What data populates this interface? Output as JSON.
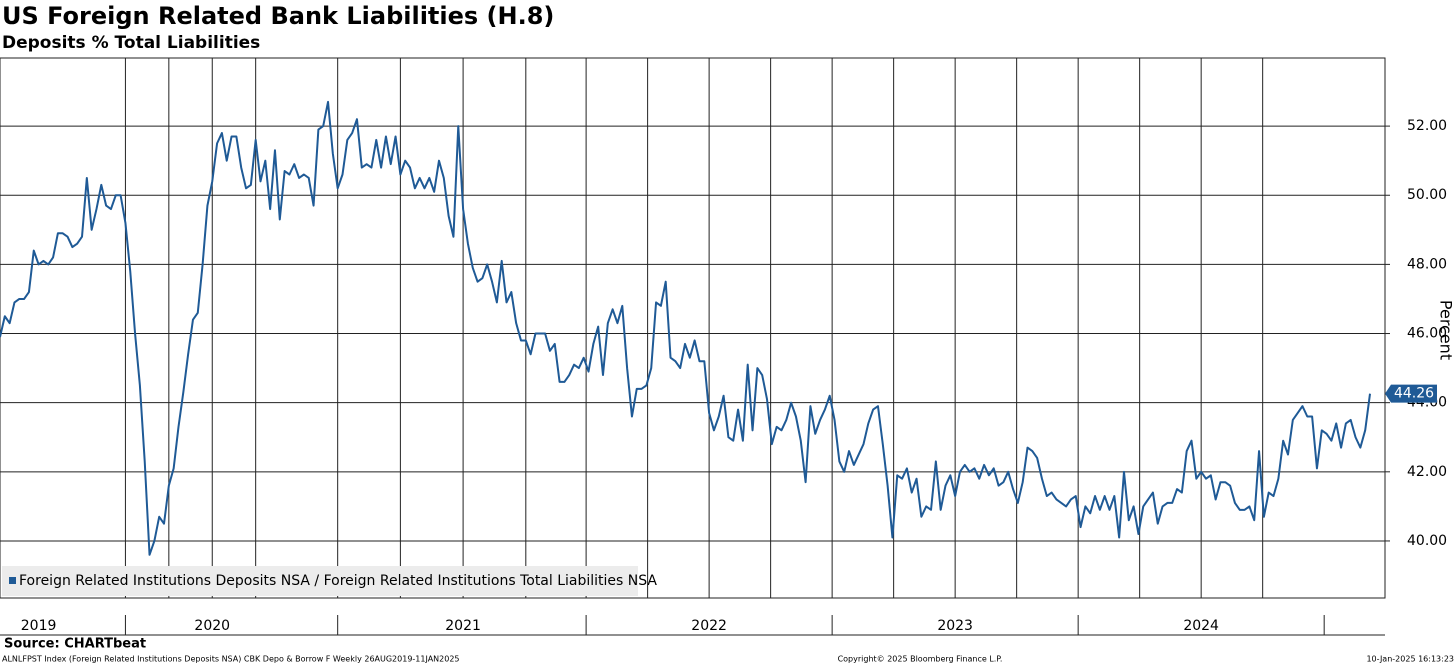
{
  "chart_data": {
    "type": "line",
    "title": "US Foreign Related Bank Liabilities (H.8)",
    "subtitle": "Deposits % Total Liabilities",
    "y_label": "Percent",
    "source": "Source: CHARTbeat",
    "footer_left": "ALNLFPST Index (Foreign Related Institutions Deposits NSA) CBK Depo & Borrow F  Weekly 26AUG2019-11JAN2025",
    "footer_center": "Copyright© 2025 Bloomberg Finance L.P.",
    "footer_right": "10-Jan-2025 16:13:23",
    "grid": true,
    "legend": "lower left",
    "ylim": [
      38.35,
      53.97
    ],
    "yticks": [
      {
        "value": 40,
        "label": "40.00"
      },
      {
        "value": 42,
        "label": "42.00"
      },
      {
        "value": 44,
        "label": "44.00"
      },
      {
        "value": 46,
        "label": "46.00"
      },
      {
        "value": 48,
        "label": "48.00"
      },
      {
        "value": 50,
        "label": "50.00"
      },
      {
        "value": 52,
        "label": "52.00"
      }
    ],
    "categories": [
      null,
      null,
      null,
      null,
      null,
      null,
      null,
      null,
      "2019",
      null,
      null,
      null,
      null,
      null,
      null,
      null,
      null,
      null,
      null,
      null,
      null,
      null,
      null,
      null,
      null,
      null,
      null,
      null,
      null,
      null,
      null,
      null,
      null,
      null,
      null,
      null,
      null,
      null,
      null,
      null,
      null,
      null,
      null,
      null,
      "2020",
      null,
      null,
      null,
      null,
      null,
      null,
      null,
      null,
      null,
      null,
      null,
      null,
      null,
      null,
      null,
      null,
      null,
      null,
      null,
      null,
      null,
      null,
      null,
      null,
      null,
      null,
      null,
      null,
      null,
      null,
      null,
      null,
      null,
      null,
      null,
      null,
      null,
      null,
      null,
      null,
      null,
      null,
      null,
      null,
      null,
      null,
      null,
      null,
      null,
      null,
      null,
      "2021",
      null,
      null,
      null,
      null,
      null,
      null,
      null,
      null,
      null,
      null,
      null,
      null,
      null,
      null,
      null,
      null,
      null,
      null,
      null,
      null,
      null,
      null,
      null,
      null,
      null,
      null,
      null,
      null,
      null,
      null,
      null,
      null,
      null,
      null,
      null,
      null,
      null,
      null,
      null,
      null,
      null,
      null,
      null,
      null,
      null,
      null,
      null,
      null,
      null,
      null,
      "2022",
      null,
      null,
      null,
      null,
      null,
      null,
      null,
      null,
      null,
      null,
      null,
      null,
      null,
      null,
      null,
      null,
      null,
      null,
      null,
      null,
      null,
      null,
      null,
      null,
      null,
      null,
      null,
      null,
      null,
      null,
      null,
      null,
      null,
      null,
      null,
      null,
      null,
      null,
      null,
      null,
      null,
      null,
      null,
      null,
      null,
      null,
      null,
      null,
      null,
      null,
      "2023",
      null,
      null,
      null,
      null,
      null,
      null,
      null,
      null,
      null,
      null,
      null,
      null,
      null,
      null,
      null,
      null,
      null,
      null,
      null,
      null,
      null,
      null,
      null,
      null,
      null,
      null,
      null,
      null,
      null,
      null,
      null,
      null,
      null,
      null,
      null,
      null,
      null,
      null,
      null,
      null,
      null,
      null,
      null,
      null,
      null,
      null,
      null,
      null,
      null,
      null,
      "2024",
      null,
      null,
      null,
      null,
      null,
      null,
      null,
      null,
      null,
      null,
      null,
      null,
      null,
      null,
      null,
      null,
      null,
      null,
      null,
      null,
      null,
      null,
      null,
      null,
      null,
      null,
      null,
      null,
      null,
      null,
      null,
      null,
      null,
      null,
      null
    ],
    "series": [
      {
        "name": "Foreign Related Institutions Deposits NSA / Foreign Related Institutions Total Liabilities NSA",
        "color": "#1f5a96",
        "values": [
          45.9,
          46.5,
          46.3,
          46.9,
          47.0,
          47.0,
          47.2,
          48.4,
          48.0,
          48.1,
          48.0,
          48.2,
          48.9,
          48.9,
          48.8,
          48.5,
          48.6,
          48.8,
          50.5,
          49.0,
          49.6,
          50.3,
          49.7,
          49.6,
          50.0,
          50.0,
          49.2,
          47.8,
          46.0,
          44.5,
          42.3,
          39.6,
          40.0,
          40.7,
          40.5,
          41.6,
          42.1,
          43.3,
          44.3,
          45.4,
          46.4,
          46.6,
          48.0,
          49.7,
          50.4,
          51.5,
          51.8,
          51.0,
          51.7,
          51.7,
          50.8,
          50.2,
          50.3,
          51.6,
          50.4,
          51.0,
          49.6,
          51.3,
          49.3,
          50.7,
          50.6,
          50.9,
          50.5,
          50.6,
          50.5,
          49.7,
          51.9,
          52.0,
          52.7,
          51.2,
          50.2,
          50.6,
          51.6,
          51.8,
          52.2,
          50.8,
          50.9,
          50.8,
          51.6,
          50.8,
          51.7,
          50.9,
          51.7,
          50.6,
          51.0,
          50.8,
          50.2,
          50.5,
          50.2,
          50.5,
          50.1,
          51.0,
          50.5,
          49.4,
          48.8,
          52.0,
          49.6,
          48.6,
          47.9,
          47.5,
          47.6,
          48.0,
          47.5,
          46.9,
          48.1,
          46.9,
          47.2,
          46.3,
          45.8,
          45.8,
          45.4,
          46.0,
          46.0,
          46.0,
          45.5,
          45.7,
          44.6,
          44.6,
          44.8,
          45.1,
          45.0,
          45.3,
          44.9,
          45.7,
          46.2,
          44.8,
          46.3,
          46.7,
          46.3,
          46.8,
          45.0,
          43.6,
          44.4,
          44.4,
          44.5,
          45.0,
          46.9,
          46.8,
          47.5,
          45.3,
          45.2,
          45.0,
          45.7,
          45.3,
          45.8,
          45.2,
          45.2,
          43.7,
          43.2,
          43.6,
          44.2,
          43.0,
          42.9,
          43.8,
          42.9,
          45.1,
          43.2,
          45.0,
          44.8,
          44.1,
          42.8,
          43.3,
          43.2,
          43.5,
          44.0,
          43.6,
          42.9,
          41.7,
          43.9,
          43.1,
          43.5,
          43.8,
          44.2,
          43.5,
          42.3,
          42.0,
          42.6,
          42.2,
          42.5,
          42.8,
          43.4,
          43.8,
          43.9,
          42.8,
          41.6,
          40.1,
          41.9,
          41.8,
          42.1,
          41.4,
          41.8,
          40.7,
          41.0,
          40.9,
          42.3,
          40.9,
          41.6,
          41.9,
          41.3,
          42.0,
          42.2,
          42.0,
          42.1,
          41.8,
          42.2,
          41.9,
          42.1,
          41.6,
          41.7,
          42.0,
          41.5,
          41.1,
          41.7,
          42.7,
          42.6,
          42.4,
          41.8,
          41.3,
          41.4,
          41.2,
          41.1,
          41.0,
          41.2,
          41.3,
          40.4,
          41.0,
          40.8,
          41.3,
          40.9,
          41.3,
          40.9,
          41.3,
          40.1,
          42.0,
          40.6,
          41.0,
          40.2,
          41.0,
          41.2,
          41.4,
          40.5,
          41.0,
          41.1,
          41.1,
          41.5,
          41.4,
          42.6,
          42.9,
          41.8,
          42.0,
          41.8,
          41.9,
          41.2,
          41.7,
          41.7,
          41.6,
          41.1,
          40.9,
          40.9,
          41.0,
          40.6,
          42.6,
          40.7,
          41.4,
          41.3,
          41.8,
          42.9,
          42.5,
          43.5,
          43.7,
          43.9,
          43.6,
          43.6,
          42.1,
          43.2,
          43.1,
          42.9,
          43.4,
          42.7,
          43.4,
          43.5,
          43.0,
          42.7,
          43.2,
          44.26
        ]
      }
    ]
  }
}
